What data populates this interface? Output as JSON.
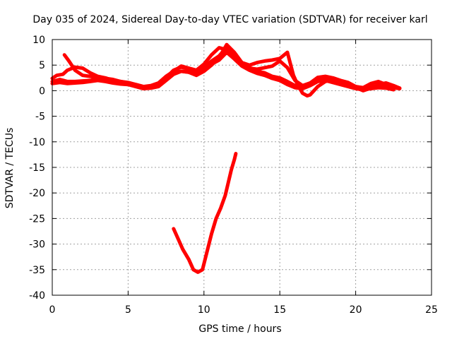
{
  "chart_data": {
    "type": "line",
    "title": "Day 035 of 2024, Sidereal Day-to-day VTEC variation (SDTVAR) for receiver karl",
    "xlabel": "GPS time / hours",
    "ylabel": "SDTVAR / TECUs",
    "xlim": [
      0,
      25
    ],
    "ylim": [
      -40,
      10
    ],
    "x_ticks": [
      0,
      5,
      10,
      15,
      20,
      25
    ],
    "x_tick_labels": [
      "0",
      "5",
      "10",
      "15",
      "20",
      "25"
    ],
    "y_ticks": [
      -40,
      -35,
      -30,
      -25,
      -20,
      -15,
      -10,
      -5,
      0,
      5,
      10
    ],
    "y_tick_labels": [
      "-40",
      "-35",
      "-30",
      "-25",
      "-20",
      "-15",
      "-10",
      "-5",
      "0",
      "5",
      "10"
    ],
    "grid": true,
    "legend": "none",
    "colors": {
      "series": "#ff0000",
      "grid": "#a0a0a0",
      "axis": "#000000"
    },
    "series": [
      {
        "name": "track-a",
        "x": [
          0.0,
          0.5,
          1.0,
          1.5,
          2.0,
          2.5,
          3.0,
          3.5,
          4.0,
          4.5,
          5.0,
          5.5,
          6.0,
          6.5,
          7.0,
          7.5,
          8.0,
          8.5,
          9.0,
          9.5,
          10.0,
          10.5,
          11.0,
          11.5,
          12.0,
          12.5,
          13.0,
          13.5,
          14.0,
          14.5,
          15.0,
          15.5,
          16.0,
          16.5,
          17.0,
          17.5,
          18.0,
          18.5,
          19.0,
          19.5,
          20.0,
          20.5,
          21.0,
          21.5,
          22.0,
          22.5,
          22.9
        ],
        "y": [
          1.8,
          2.2,
          1.8,
          1.8,
          1.9,
          2.0,
          2.3,
          2.2,
          1.8,
          1.6,
          1.4,
          1.0,
          0.6,
          0.8,
          1.2,
          2.5,
          4.0,
          4.6,
          4.2,
          3.5,
          4.6,
          5.8,
          6.8,
          8.5,
          7.0,
          5.2,
          4.5,
          3.8,
          3.5,
          2.8,
          2.5,
          1.8,
          1.0,
          0.8,
          1.5,
          2.2,
          2.4,
          2.0,
          1.5,
          1.0,
          0.8,
          0.5,
          0.8,
          1.0,
          0.9,
          0.6,
          0.4
        ]
      },
      {
        "name": "track-b",
        "x": [
          0.0,
          0.3,
          0.7,
          1.0,
          1.5,
          2.0,
          2.5,
          3.0,
          3.5,
          4.0,
          4.5,
          5.0,
          5.5,
          6.0,
          6.5,
          7.0,
          7.5,
          8.0,
          8.5,
          9.0,
          9.5,
          10.0,
          10.5,
          11.0,
          11.5,
          12.0,
          12.5,
          13.0,
          13.5,
          14.0,
          14.5,
          15.0,
          15.5,
          16.0,
          16.5,
          17.0,
          17.5,
          18.0,
          18.5,
          19.0,
          19.5,
          20.0,
          20.5,
          21.0,
          21.5,
          22.0,
          22.5,
          22.9
        ],
        "y": [
          2.4,
          3.0,
          3.2,
          4.0,
          4.6,
          4.4,
          3.5,
          2.8,
          2.5,
          2.0,
          1.8,
          1.5,
          1.2,
          0.8,
          1.0,
          1.5,
          2.8,
          3.8,
          4.8,
          4.4,
          4.0,
          5.2,
          7.0,
          8.4,
          8.0,
          6.5,
          5.0,
          4.4,
          4.2,
          4.5,
          4.8,
          5.8,
          4.5,
          2.0,
          1.0,
          1.5,
          2.6,
          2.8,
          2.5,
          2.0,
          1.6,
          0.8,
          0.6,
          1.4,
          1.8,
          1.2,
          0.8,
          0.5
        ]
      },
      {
        "name": "track-c",
        "x": [
          0.8,
          1.1,
          1.5,
          2.0,
          2.5,
          3.0,
          3.5,
          4.0,
          4.5,
          5.0,
          5.5,
          6.0,
          6.5,
          7.0,
          7.5,
          8.0,
          8.5,
          9.0,
          9.5,
          10.0,
          10.5,
          11.0,
          11.5,
          12.0,
          12.5,
          13.0,
          13.5,
          14.0,
          14.5,
          15.0,
          15.5,
          15.9,
          16.2,
          16.5,
          16.8,
          17.0,
          17.5,
          18.0,
          18.5,
          19.0,
          19.5,
          20.0,
          20.5,
          21.0,
          21.5,
          22.0,
          22.5,
          22.9
        ],
        "y": [
          7.0,
          5.8,
          4.0,
          3.0,
          2.8,
          2.6,
          2.4,
          2.2,
          1.8,
          1.6,
          1.2,
          0.8,
          0.6,
          1.0,
          2.2,
          3.5,
          3.8,
          3.6,
          3.0,
          3.8,
          5.0,
          6.5,
          9.0,
          7.5,
          5.5,
          5.0,
          5.5,
          5.8,
          6.0,
          6.3,
          7.5,
          3.0,
          1.0,
          -0.5,
          -1.0,
          -0.8,
          0.8,
          1.8,
          2.2,
          1.8,
          1.2,
          0.6,
          0.0,
          0.5,
          1.2,
          1.5,
          1.0,
          0.5
        ]
      },
      {
        "name": "track-d",
        "x": [
          0.0,
          0.5,
          1.0,
          1.5,
          2.0,
          2.5,
          3.0,
          3.5,
          4.0,
          4.5,
          5.0,
          5.5,
          6.0,
          6.5,
          7.0,
          7.5,
          8.0,
          8.5,
          9.0,
          9.5,
          10.0,
          10.5,
          11.0,
          11.5,
          12.0,
          12.5,
          13.0,
          13.5,
          14.0,
          14.5,
          15.0,
          15.5,
          16.0,
          16.5,
          17.0,
          17.5,
          18.0,
          18.5,
          19.0,
          19.5,
          20.0,
          20.5,
          21.0,
          21.5,
          22.0,
          22.5
        ],
        "y": [
          1.4,
          1.6,
          1.4,
          1.5,
          1.6,
          1.8,
          2.0,
          1.8,
          1.5,
          1.3,
          1.2,
          0.8,
          0.4,
          0.5,
          0.8,
          2.0,
          3.2,
          3.8,
          3.6,
          3.2,
          4.2,
          5.2,
          6.0,
          7.5,
          6.2,
          4.8,
          4.0,
          3.4,
          3.0,
          2.4,
          2.0,
          1.2,
          0.6,
          0.4,
          1.0,
          1.8,
          2.0,
          1.6,
          1.2,
          0.8,
          0.4,
          0.2,
          0.4,
          0.6,
          0.5,
          0.2
        ]
      },
      {
        "name": "track-e",
        "x": [
          8.0,
          8.3,
          8.6,
          9.0,
          9.3,
          9.6,
          9.9,
          10.2,
          10.5,
          10.8,
          11.1,
          11.4,
          11.6,
          11.8,
          12.0,
          12.1
        ],
        "y": [
          -27.0,
          -29.0,
          -31.0,
          -33.0,
          -35.0,
          -35.5,
          -35.0,
          -31.5,
          -28.0,
          -25.0,
          -23.0,
          -20.5,
          -18.0,
          -15.5,
          -13.5,
          -12.3
        ]
      }
    ]
  }
}
